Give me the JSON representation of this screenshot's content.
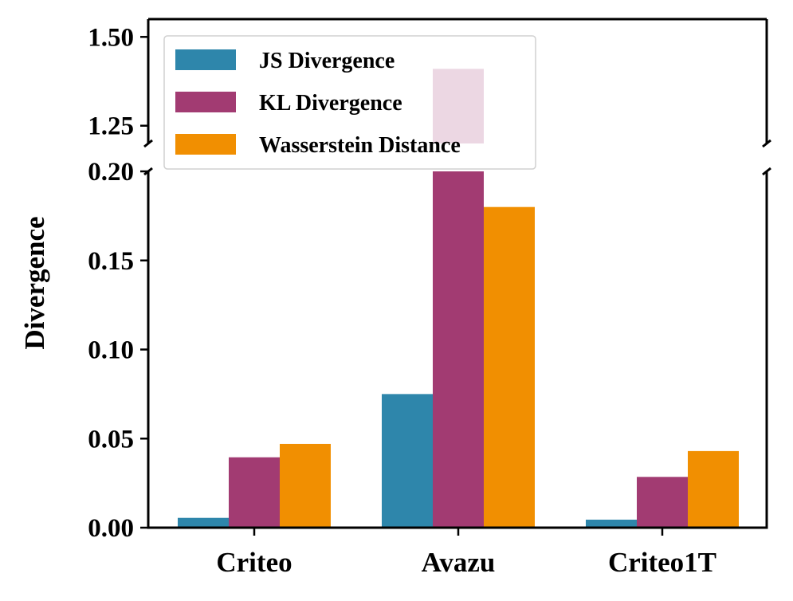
{
  "chart_data": {
    "type": "bar",
    "ylabel": "Divergence",
    "categories": [
      "Criteo",
      "Avazu",
      "Criteo1T"
    ],
    "series": [
      {
        "name": "JS Divergence",
        "color": "#2E86AB",
        "values": [
          0.0055,
          0.075,
          0.0045
        ]
      },
      {
        "name": "KL Divergence",
        "color": "#A23B72",
        "values": [
          0.0395,
          1.41,
          0.0285
        ]
      },
      {
        "name": "Wasserstein Distance",
        "color": "#F18F01",
        "values": [
          0.047,
          0.18,
          0.043
        ]
      }
    ],
    "broken_axis": {
      "lower_ylim": [
        0,
        0.2
      ],
      "upper_ylim": [
        1.2,
        1.55
      ],
      "lower_ticks": [
        "0.00",
        "0.05",
        "0.10",
        "0.15",
        "0.20"
      ],
      "upper_ticks": [
        "1.25",
        "1.50"
      ]
    },
    "legend": {
      "position": "top-left"
    }
  }
}
